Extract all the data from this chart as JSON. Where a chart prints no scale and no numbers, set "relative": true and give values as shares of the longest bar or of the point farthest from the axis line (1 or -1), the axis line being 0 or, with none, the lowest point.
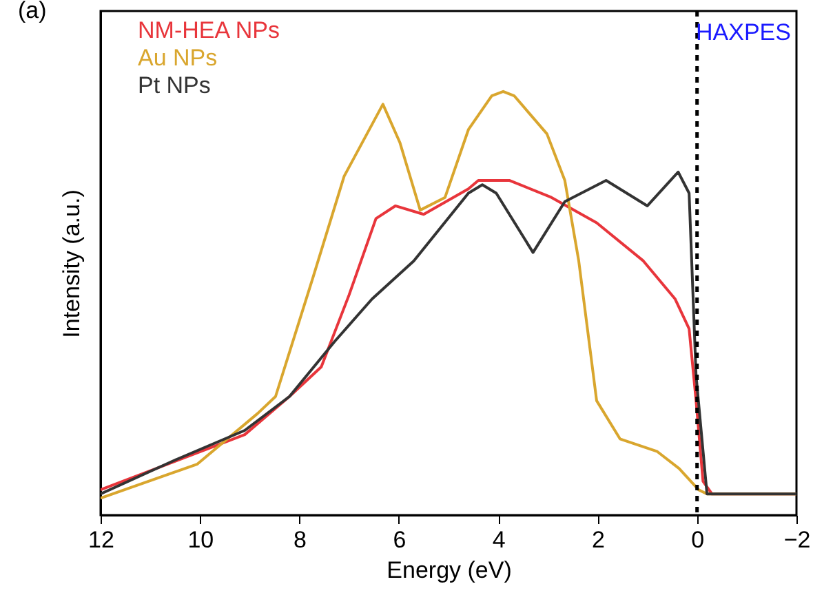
{
  "chart_data": {
    "type": "line",
    "xlabel": "Energy (eV)",
    "ylabel": "Intensity (a.u.)",
    "relative": true,
    "xlim": [
      12,
      -2
    ],
    "xticks": [
      12,
      10,
      8,
      6,
      4,
      2,
      0,
      -2
    ],
    "grid": false,
    "legend": "top left",
    "line_style": "solid",
    "marker": "none",
    "annotations": [
      "(a)",
      "HAXPES"
    ],
    "ref_lines": [
      {
        "axis": "x",
        "value": 0,
        "color": "#000000",
        "line_style": "dashed"
      }
    ],
    "series": [
      {
        "name": "NM-HEA NPs",
        "color": "#e8353b",
        "x": [
          12,
          9.1,
          8.2,
          7.56,
          7.0,
          6.46,
          6.07,
          5.5,
          4.6,
          4.4,
          3.77,
          2.93,
          2.02,
          1.08,
          0.44,
          0.16,
          0.02,
          -0.12,
          -0.3,
          -2
        ],
        "values": [
          0.06,
          0.19,
          0.28,
          0.35,
          0.52,
          0.7,
          0.73,
          0.71,
          0.77,
          0.79,
          0.79,
          0.75,
          0.69,
          0.6,
          0.51,
          0.44,
          0.27,
          0.08,
          0.05,
          0.05
        ]
      },
      {
        "name": "Au NPs",
        "color": "#d9a62e",
        "x": [
          12,
          10.06,
          8.84,
          8.48,
          7.73,
          7.1,
          6.32,
          5.98,
          5.57,
          5.07,
          4.6,
          4.13,
          3.9,
          3.68,
          3.02,
          2.66,
          2.38,
          2.02,
          1.55,
          0.8,
          0.36,
          -0.03,
          -0.2,
          -2
        ],
        "values": [
          0.04,
          0.12,
          0.24,
          0.28,
          0.56,
          0.8,
          0.97,
          0.88,
          0.72,
          0.75,
          0.91,
          0.99,
          1,
          0.99,
          0.9,
          0.79,
          0.6,
          0.27,
          0.18,
          0.15,
          0.11,
          0.06,
          0.05,
          0.05
        ]
      },
      {
        "name": "Pt NPs",
        "color": "#333333",
        "x": [
          12,
          10.5,
          9.1,
          8.2,
          7.29,
          6.54,
          5.7,
          4.6,
          4.32,
          4.04,
          3.3,
          2.66,
          1.83,
          1.0,
          0.38,
          0.16,
          0.02,
          -0.2,
          -2
        ],
        "values": [
          0.05,
          0.13,
          0.2,
          0.28,
          0.41,
          0.51,
          0.6,
          0.76,
          0.78,
          0.76,
          0.62,
          0.74,
          0.79,
          0.73,
          0.81,
          0.76,
          0.33,
          0.05,
          0.05
        ]
      }
    ]
  }
}
